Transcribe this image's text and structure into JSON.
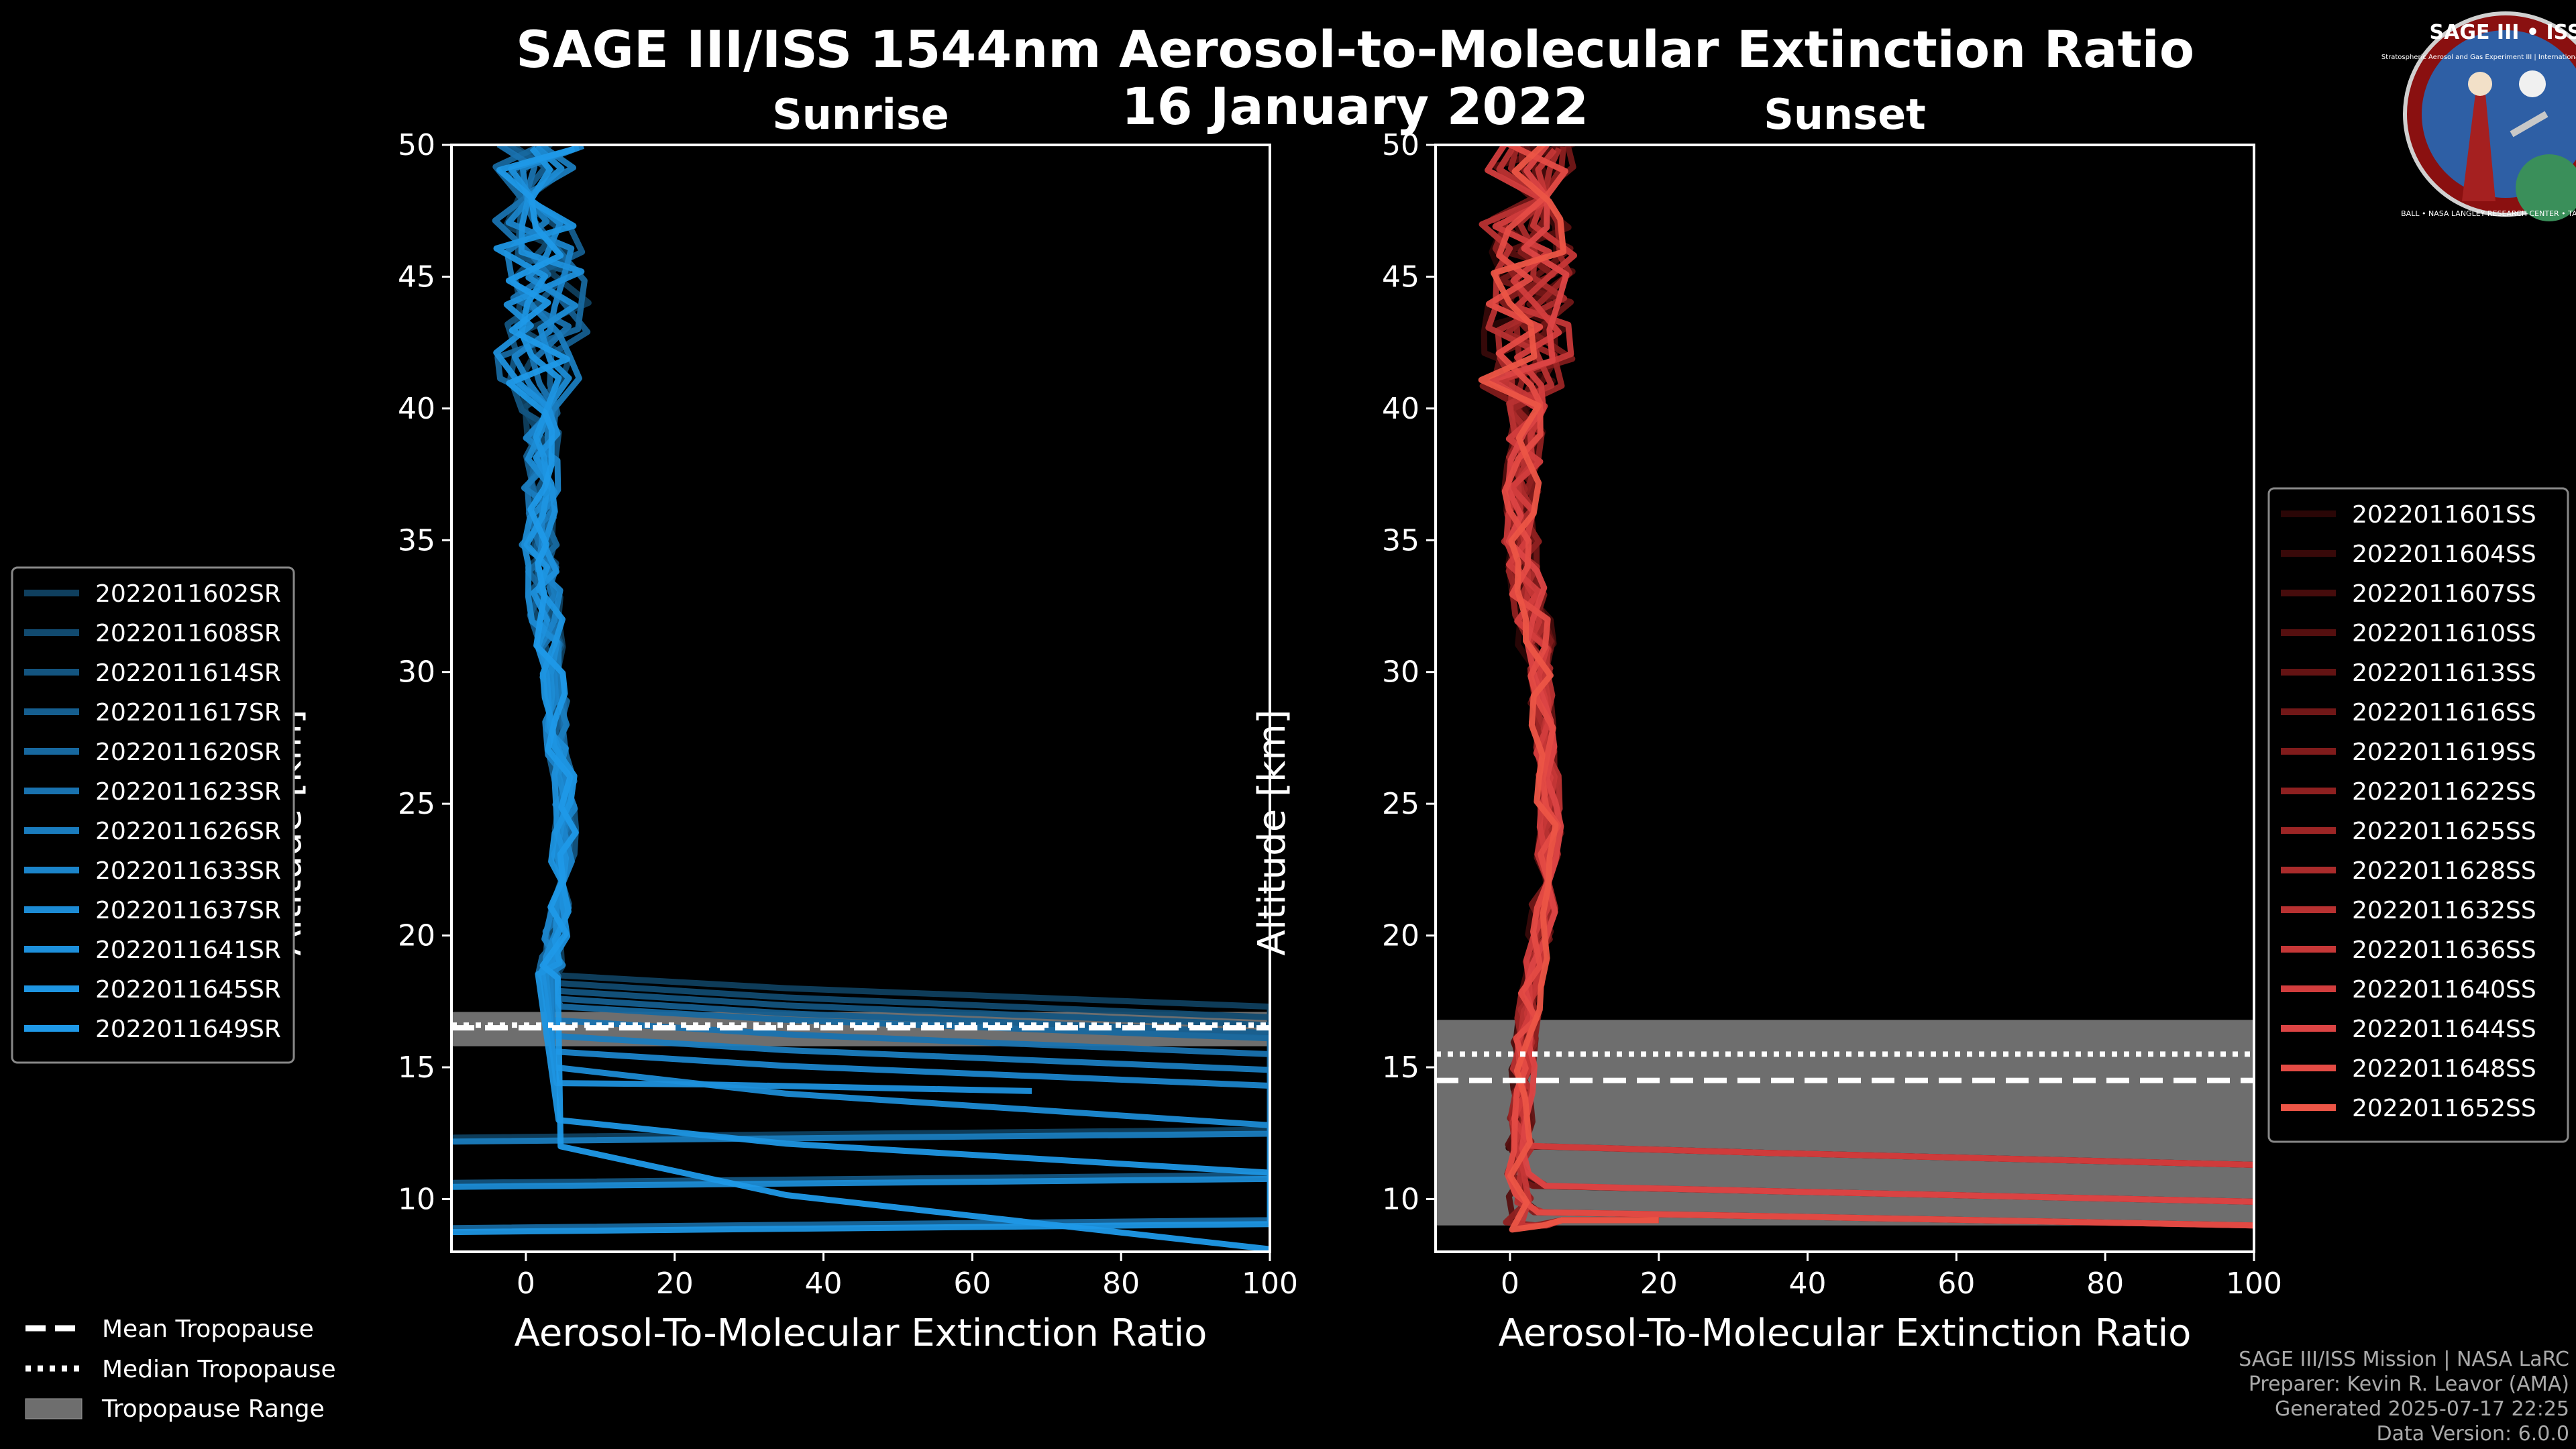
{
  "title_line1": "SAGE III/ISS 1544nm Aerosol-to-Molecular Extinction Ratio",
  "title_line2": "16 January 2022",
  "logo": {
    "text": "SAGE III • ISS",
    "ring_text": "BALL • NASA LANGLEY RESEARCH CENTER • TAS-I • ESA",
    "small_text": "Stratospheric Aerosol and Gas Experiment III | International Space Station"
  },
  "footer": {
    "line1": "SAGE III/ISS Mission | NASA LaRC",
    "line2": "Preparer: Kevin R. Leavor (AMA)",
    "line3": "Generated 2025-07-17 22:25",
    "line4": "Data Version: 6.0.0"
  },
  "tropopause_legend": {
    "mean": "Mean Tropopause",
    "median": "Median Tropopause",
    "range": "Tropopause Range"
  },
  "chart_data": [
    {
      "type": "line",
      "title": "Sunrise",
      "xlabel": "Aerosol-To-Molecular Extinction Ratio",
      "ylabel": "Altitude [km]",
      "xlim": [
        -10,
        100
      ],
      "ylim": [
        8,
        50
      ],
      "xticks": [
        "0",
        "20",
        "40",
        "60",
        "80",
        "100"
      ],
      "yticks": [
        "10",
        "15",
        "20",
        "25",
        "30",
        "35",
        "40",
        "45",
        "50"
      ],
      "series_names": [
        "2022011602SR",
        "2022011608SR",
        "2022011614SR",
        "2022011617SR",
        "2022011620SR",
        "2022011623SR",
        "2022011626SR",
        "2022011633SR",
        "2022011637SR",
        "2022011641SR",
        "2022011645SR",
        "2022011649SR"
      ],
      "colors": [
        "#0f3f5e",
        "#114a6f",
        "#13547f",
        "#155e8f",
        "#17689f",
        "#1972af",
        "#1a7cbe",
        "#1b84ca",
        "#1c8bd4",
        "#1d90dc",
        "#1e95e2",
        "#1f99e8"
      ],
      "tropopause": {
        "mean": 16.5,
        "median": 16.6,
        "range": [
          15.8,
          17.1
        ]
      },
      "profile": {
        "alt": [
          50,
          49,
          48,
          47,
          46,
          45,
          44,
          43,
          42,
          41,
          40,
          39,
          38,
          37,
          36,
          35,
          34,
          33,
          32,
          31,
          30,
          29,
          28,
          27,
          26,
          25,
          24,
          23,
          22,
          21,
          20,
          19,
          18.5
        ],
        "x": [
          2,
          1.5,
          2.5,
          1,
          2,
          2,
          3,
          2.5,
          1.8,
          2.2,
          1.8,
          2.5,
          2.2,
          2,
          2.5,
          1.8,
          2.5,
          2.8,
          3,
          3.2,
          3.5,
          4,
          4.2,
          4.5,
          5,
          5,
          5.2,
          5,
          4.8,
          4.5,
          4,
          3.5,
          3.2
        ]
      },
      "tails": [
        {
          "start": 18.5,
          "end_x": 100,
          "end_alt": 17.3
        },
        {
          "start": 18.2,
          "end_x": 100,
          "end_alt": 16.9
        },
        {
          "start": 17.9,
          "end_x": 100,
          "end_alt": 16.6
        },
        {
          "start": 17.6,
          "end_x": 100,
          "end_alt": 16.3
        },
        {
          "start": 17.3,
          "end_x": 100,
          "end_alt": 16.1
        },
        {
          "start": 16.8,
          "end_x": 100,
          "end_alt": 15.5
        },
        {
          "start": 16.2,
          "end_x": 100,
          "end_alt": 14.9
        },
        {
          "start": 15.6,
          "end_x": 100,
          "end_alt": 14.3
        },
        {
          "start": 15.0,
          "end_x": 100,
          "end_alt": 12.8
        },
        {
          "start": 14.4,
          "end_x": 68,
          "end_alt": 14.1
        },
        {
          "start": 13.0,
          "end_x": 100,
          "end_alt": 11.0
        },
        {
          "start": 12.0,
          "end_x": 100,
          "end_alt": 8.1
        }
      ]
    },
    {
      "type": "line",
      "title": "Sunset",
      "xlabel": "Aerosol-To-Molecular Extinction Ratio",
      "ylabel": "Altitude [km]",
      "xlim": [
        -10,
        100
      ],
      "ylim": [
        8,
        50
      ],
      "xticks": [
        "0",
        "20",
        "40",
        "60",
        "80",
        "100"
      ],
      "yticks": [
        "10",
        "15",
        "20",
        "25",
        "30",
        "35",
        "40",
        "45",
        "50"
      ],
      "series_names": [
        "2022011601SS",
        "2022011604SS",
        "2022011607SS",
        "2022011610SS",
        "2022011613SS",
        "2022011616SS",
        "2022011619SS",
        "2022011622SS",
        "2022011625SS",
        "2022011628SS",
        "2022011632SS",
        "2022011636SS",
        "2022011640SS",
        "2022011644SS",
        "2022011648SS",
        "2022011652SS"
      ],
      "colors": [
        "#2a0606",
        "#380909",
        "#460c0c",
        "#550f0f",
        "#631313",
        "#711717",
        "#801b1b",
        "#8e2020",
        "#9c2525",
        "#aa2b2b",
        "#b83131",
        "#c63737",
        "#d23d3d",
        "#dc4444",
        "#e44b44",
        "#ec5546"
      ],
      "tropopause": {
        "mean": 14.5,
        "median": 15.5,
        "range": [
          9.0,
          16.8
        ]
      },
      "profile": {
        "alt": [
          50,
          49,
          48,
          47,
          46,
          45,
          44,
          43,
          42,
          41,
          40,
          39,
          38,
          37,
          36,
          35,
          34,
          33,
          32,
          31,
          30,
          29,
          28,
          27,
          26,
          25,
          24,
          23,
          22,
          21,
          20,
          19,
          18,
          17,
          16,
          15,
          14,
          13,
          12,
          11,
          10,
          9,
          8
        ],
        "x": [
          3,
          2.5,
          3.5,
          2,
          3,
          2.5,
          3,
          2,
          2.5,
          1.8,
          2.2,
          2,
          1.8,
          1.5,
          1.8,
          1.5,
          2,
          2.5,
          3,
          3.5,
          4,
          4.2,
          4.5,
          4.8,
          5,
          5.2,
          5.3,
          5.2,
          5,
          4.5,
          4,
          3.5,
          3,
          2.5,
          2,
          1.8,
          1.5,
          1.5,
          1.3,
          1.2,
          1.2,
          1,
          1
        ]
      },
      "tails": [
        {
          "start": 12.0,
          "end_x": 100,
          "end_alt": 11.3
        },
        {
          "start": 10.5,
          "end_x": 100,
          "end_alt": 9.9
        },
        {
          "start": 9.5,
          "end_x": 100,
          "end_alt": 9.0
        },
        {
          "start": 9.0,
          "end_x": 20,
          "end_alt": 9.2
        }
      ]
    }
  ]
}
